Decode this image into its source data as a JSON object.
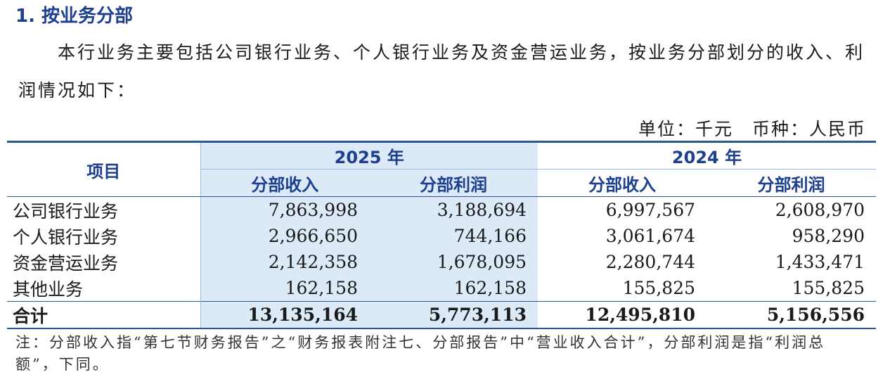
{
  "header": {
    "title": "1. 按业务分部"
  },
  "intro": "本行业务主要包括公司银行业务、个人银行业务及资金营运业务，按业务分部划分的收入、利润情况如下：",
  "unit": "单位：千元　币种：人民币",
  "table": {
    "item_header": "项目",
    "years": [
      "2025 年",
      "2024 年"
    ],
    "subheaders": [
      "分部收入",
      "分部利润",
      "分部收入",
      "分部利润"
    ],
    "rows": [
      [
        "公司银行业务",
        "7,863,998",
        "3,188,694",
        "6,997,567",
        "2,608,970"
      ],
      [
        "个人银行业务",
        "2,966,650",
        "744,166",
        "3,061,674",
        "958,290"
      ],
      [
        "资金营运业务",
        "2,142,358",
        "1,678,095",
        "2,280,744",
        "1,433,471"
      ],
      [
        "其他业务",
        "162,158",
        "162,158",
        "155,825",
        "155,825"
      ]
    ],
    "total": [
      "合计",
      "13,135,164",
      "5,773,113",
      "12,495,810",
      "5,156,556"
    ]
  },
  "note": "注：分部收入指“第七节财务报告”之“财务报表附注七、分部报告”中“营业收入合计”，分部利润是指“利润总额”，下同。"
}
